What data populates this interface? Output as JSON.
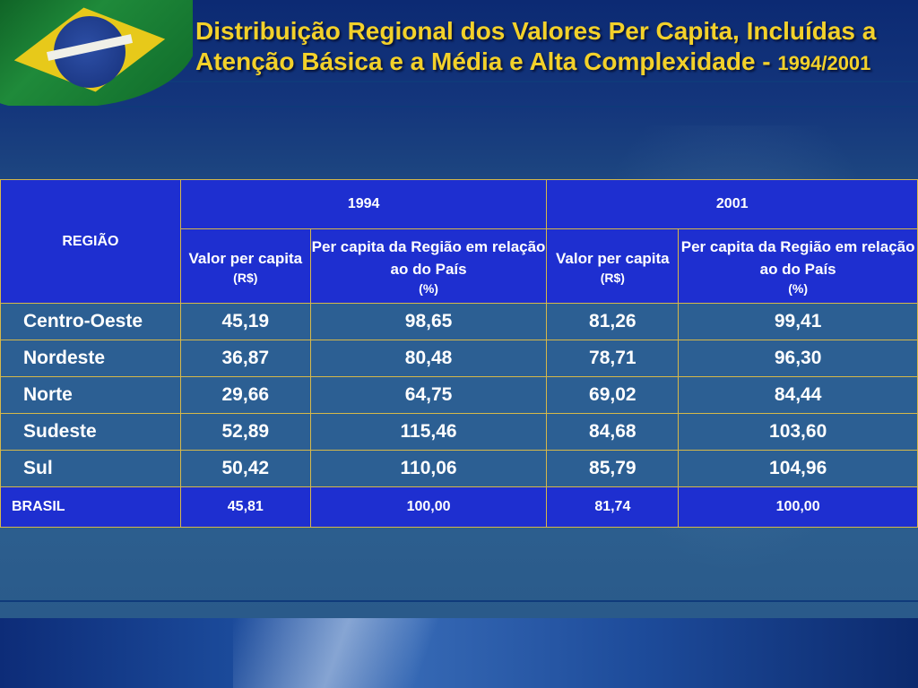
{
  "title": {
    "main": "Distribuição Regional dos Valores Per Capita, Incluídas a Atenção Básica e a Média e Alta Complexidade -",
    "period": "1994/2001"
  },
  "table": {
    "row_header": "REGIÃO",
    "years": [
      "1994",
      "2001"
    ],
    "columns": [
      {
        "label": "Valor per capita",
        "unit": "(R$)"
      },
      {
        "label": "Per capita da Região em relação ao do País",
        "unit": "(%)"
      },
      {
        "label": "Valor per capita",
        "unit": "(R$)"
      },
      {
        "label": "Per capita da Região em relação ao do País",
        "unit": "(%)"
      }
    ],
    "rows": [
      {
        "region": "Centro-Oeste",
        "values": [
          "45,19",
          "98,65",
          "81,26",
          "99,41"
        ]
      },
      {
        "region": "Nordeste",
        "values": [
          "36,87",
          "80,48",
          "78,71",
          "96,30"
        ]
      },
      {
        "region": "Norte",
        "values": [
          "29,66",
          "64,75",
          "69,02",
          "84,44"
        ]
      },
      {
        "region": "Sudeste",
        "values": [
          "52,89",
          "115,46",
          "84,68",
          "103,60"
        ]
      },
      {
        "region": "Sul",
        "values": [
          "50,42",
          "110,06",
          "85,79",
          "104,96"
        ]
      }
    ],
    "total": {
      "region": "BRASIL",
      "values": [
        "45,81",
        "100,00",
        "81,74",
        "100,00"
      ]
    }
  },
  "icons": [
    "brazil-flag-icon"
  ]
}
